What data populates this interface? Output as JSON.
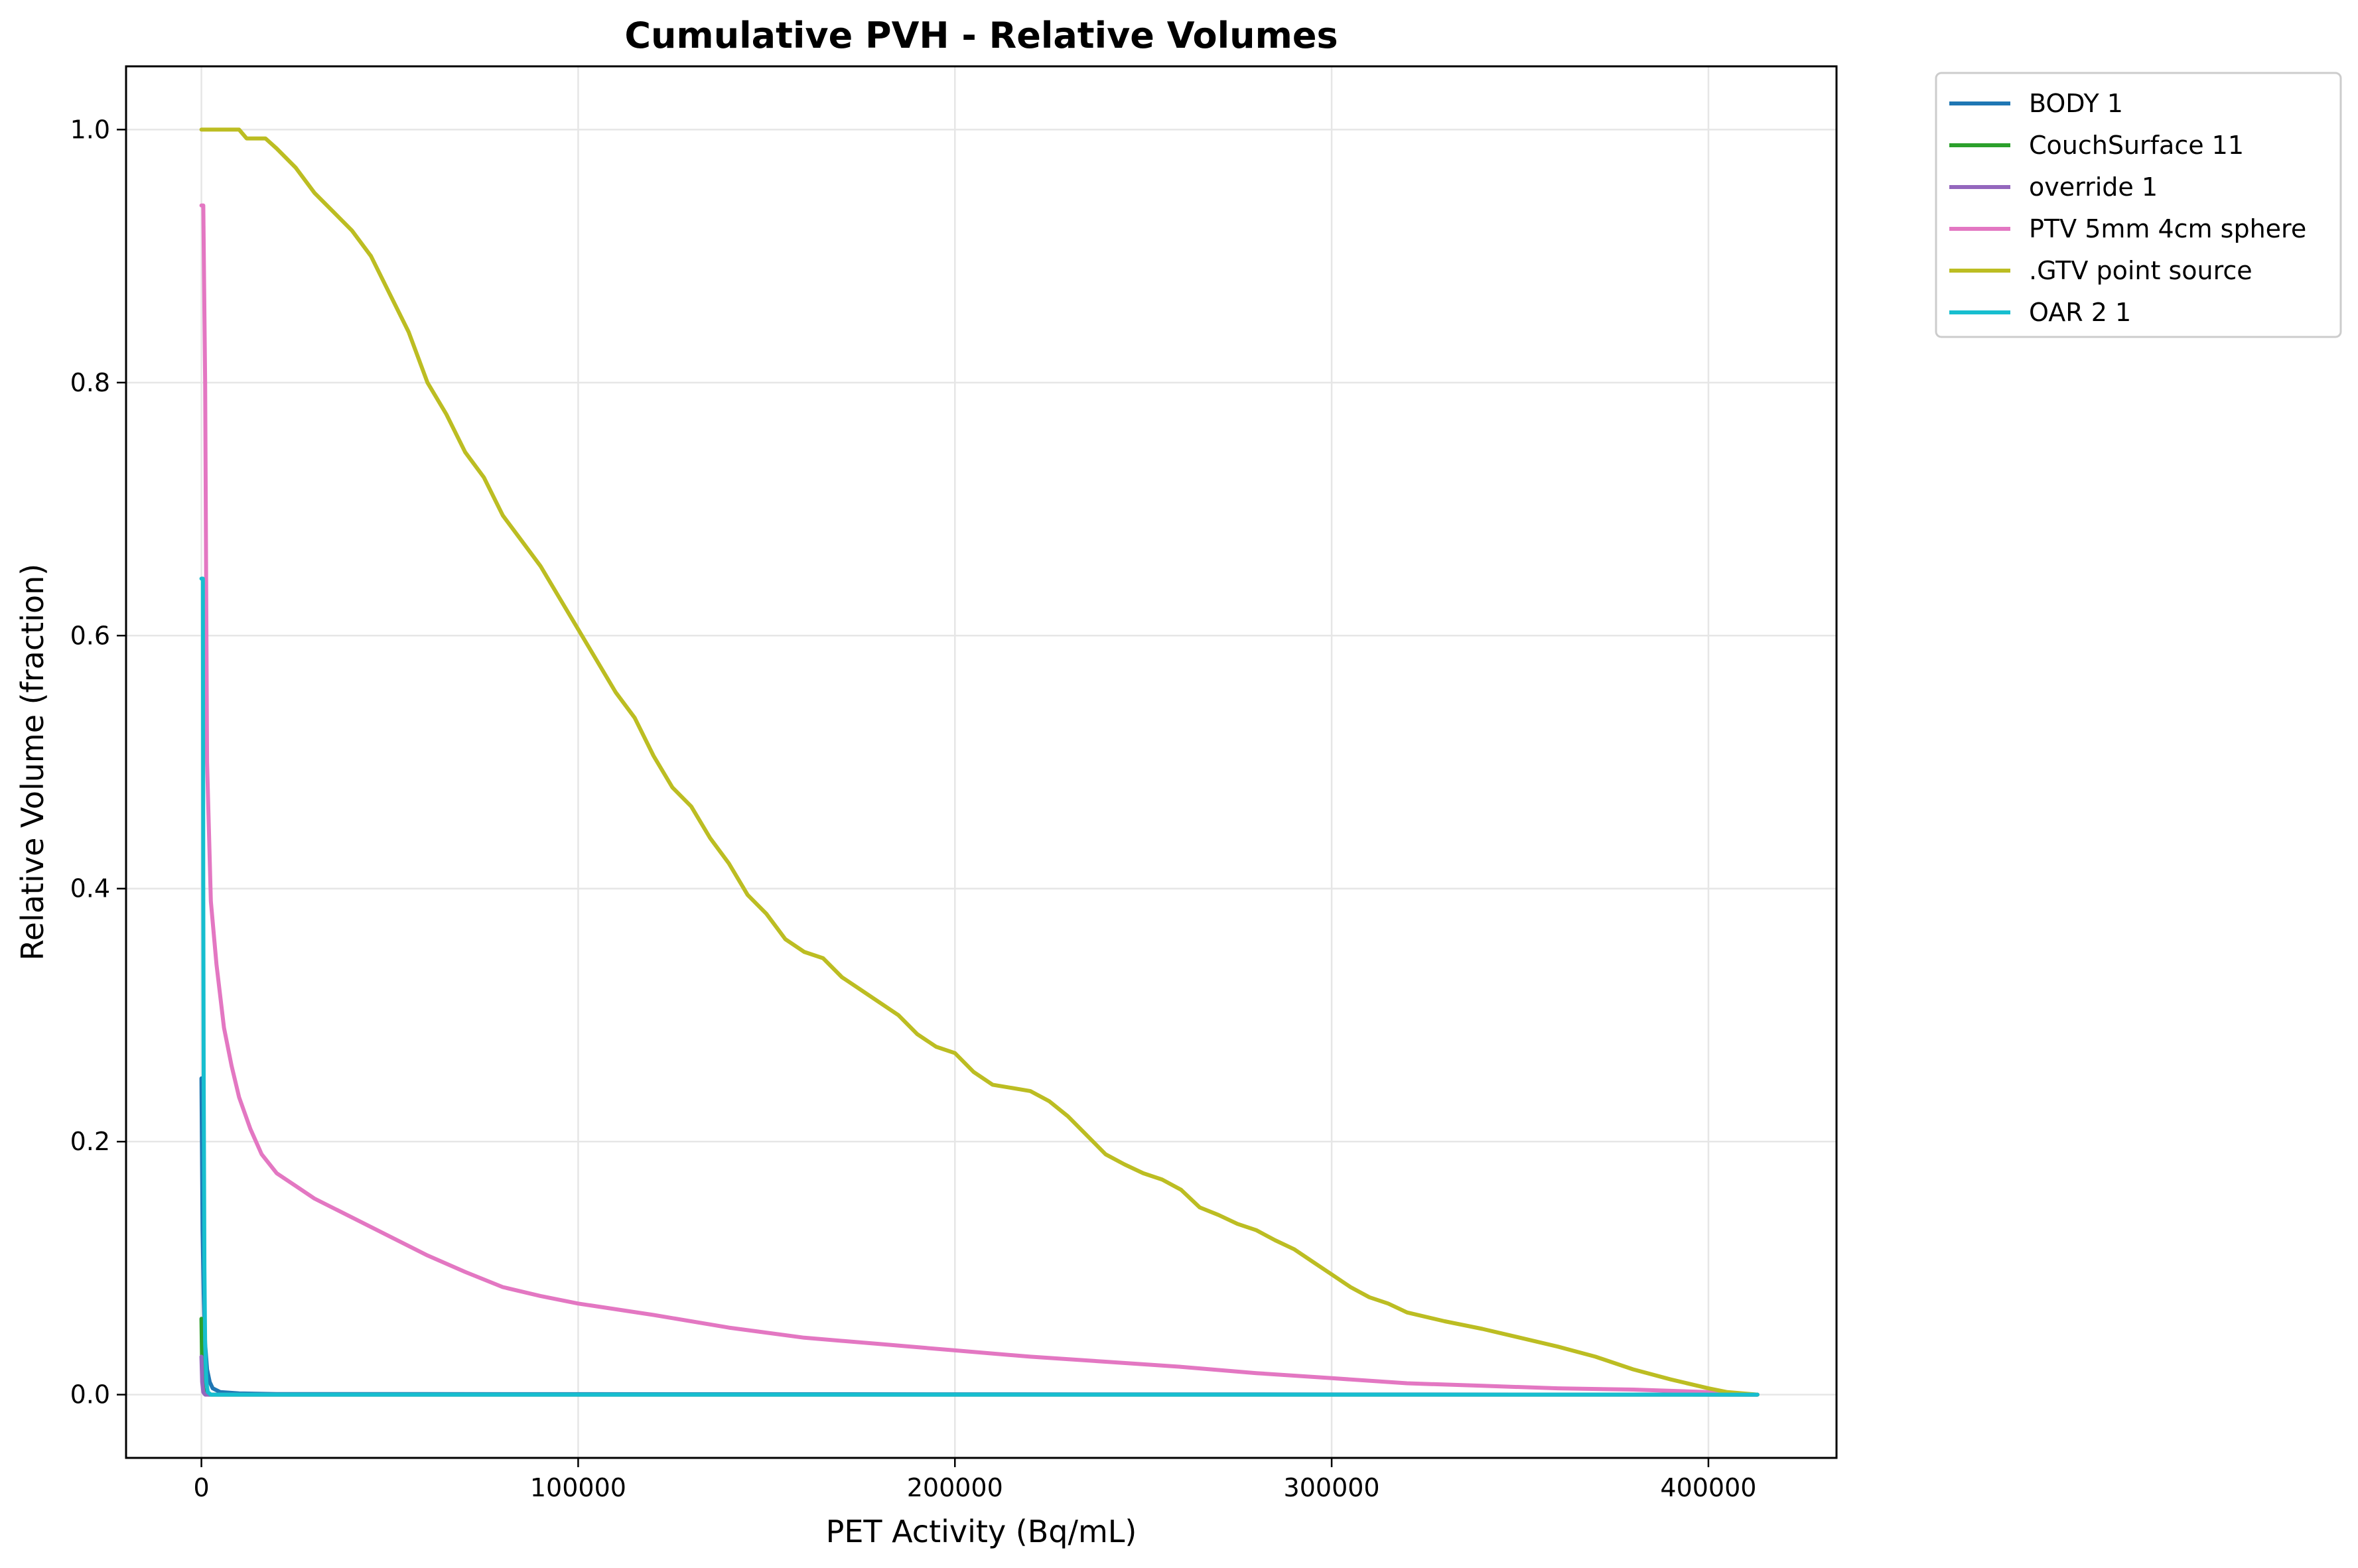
{
  "chart_data": {
    "type": "line",
    "title": "Cumulative PVH - Relative Volumes",
    "xlabel": "PET Activity (Bq/mL)",
    "ylabel": "Relative Volume (fraction)",
    "xlim": [
      -20000,
      434000
    ],
    "ylim": [
      -0.05,
      1.05
    ],
    "x_ticks": [
      0,
      100000,
      200000,
      300000,
      400000
    ],
    "x_tick_labels": [
      "0",
      "100000",
      "200000",
      "300000",
      "400000"
    ],
    "y_ticks": [
      0.0,
      0.2,
      0.4,
      0.6,
      0.8,
      1.0
    ],
    "y_tick_labels": [
      "0.0",
      "0.2",
      "0.4",
      "0.6",
      "0.8",
      "1.0"
    ],
    "grid": true,
    "legend_position": "outside-top-right",
    "series": [
      {
        "name": "BODY 1",
        "color": "#1f77b4",
        "points": [
          [
            0,
            0.25
          ],
          [
            300,
            0.13
          ],
          [
            600,
            0.08
          ],
          [
            1000,
            0.04
          ],
          [
            1500,
            0.02
          ],
          [
            2200,
            0.01
          ],
          [
            3000,
            0.005
          ],
          [
            5000,
            0.002
          ],
          [
            10000,
            0.001
          ],
          [
            20000,
            0.0005
          ],
          [
            413000,
            0.0
          ]
        ]
      },
      {
        "name": "CouchSurface 11",
        "color": "#2ca02c",
        "points": [
          [
            0,
            0.06
          ],
          [
            200,
            0.02
          ],
          [
            500,
            0.005
          ],
          [
            1000,
            0.001
          ],
          [
            2000,
            0.0
          ],
          [
            413000,
            0.0
          ]
        ]
      },
      {
        "name": "override 1",
        "color": "#9467bd",
        "points": [
          [
            0,
            0.03
          ],
          [
            200,
            0.01
          ],
          [
            500,
            0.002
          ],
          [
            1000,
            0.0
          ],
          [
            413000,
            0.0
          ]
        ]
      },
      {
        "name": "PTV 5mm 4cm sphere",
        "color": "#e377c2",
        "points": [
          [
            0,
            0.94
          ],
          [
            500,
            0.94
          ],
          [
            1000,
            0.8
          ],
          [
            1500,
            0.5
          ],
          [
            2500,
            0.39
          ],
          [
            4000,
            0.34
          ],
          [
            6000,
            0.29
          ],
          [
            8000,
            0.26
          ],
          [
            10000,
            0.235
          ],
          [
            13000,
            0.21
          ],
          [
            16000,
            0.19
          ],
          [
            20000,
            0.175
          ],
          [
            25000,
            0.165
          ],
          [
            30000,
            0.155
          ],
          [
            40000,
            0.14
          ],
          [
            50000,
            0.125
          ],
          [
            60000,
            0.11
          ],
          [
            70000,
            0.097
          ],
          [
            80000,
            0.085
          ],
          [
            90000,
            0.078
          ],
          [
            100000,
            0.072
          ],
          [
            120000,
            0.063
          ],
          [
            140000,
            0.053
          ],
          [
            160000,
            0.045
          ],
          [
            180000,
            0.04
          ],
          [
            200000,
            0.035
          ],
          [
            220000,
            0.03
          ],
          [
            240000,
            0.026
          ],
          [
            260000,
            0.022
          ],
          [
            280000,
            0.017
          ],
          [
            300000,
            0.013
          ],
          [
            320000,
            0.009
          ],
          [
            340000,
            0.007
          ],
          [
            360000,
            0.005
          ],
          [
            380000,
            0.004
          ],
          [
            400000,
            0.002
          ],
          [
            413000,
            0.0
          ]
        ]
      },
      {
        "name": ".GTV point source",
        "color": "#bcbd22",
        "points": [
          [
            0,
            1.0
          ],
          [
            10000,
            1.0
          ],
          [
            12000,
            0.993
          ],
          [
            17000,
            0.993
          ],
          [
            20000,
            0.985
          ],
          [
            25000,
            0.97
          ],
          [
            30000,
            0.95
          ],
          [
            35000,
            0.935
          ],
          [
            40000,
            0.92
          ],
          [
            45000,
            0.9
          ],
          [
            50000,
            0.87
          ],
          [
            55000,
            0.84
          ],
          [
            60000,
            0.8
          ],
          [
            65000,
            0.775
          ],
          [
            70000,
            0.745
          ],
          [
            75000,
            0.725
          ],
          [
            80000,
            0.695
          ],
          [
            85000,
            0.675
          ],
          [
            90000,
            0.655
          ],
          [
            95000,
            0.63
          ],
          [
            100000,
            0.605
          ],
          [
            105000,
            0.58
          ],
          [
            110000,
            0.555
          ],
          [
            115000,
            0.535
          ],
          [
            120000,
            0.505
          ],
          [
            125000,
            0.48
          ],
          [
            130000,
            0.465
          ],
          [
            135000,
            0.44
          ],
          [
            140000,
            0.42
          ],
          [
            145000,
            0.395
          ],
          [
            150000,
            0.38
          ],
          [
            155000,
            0.36
          ],
          [
            160000,
            0.35
          ],
          [
            165000,
            0.345
          ],
          [
            170000,
            0.33
          ],
          [
            175000,
            0.32
          ],
          [
            180000,
            0.31
          ],
          [
            185000,
            0.3
          ],
          [
            190000,
            0.285
          ],
          [
            195000,
            0.275
          ],
          [
            200000,
            0.27
          ],
          [
            205000,
            0.255
          ],
          [
            210000,
            0.245
          ],
          [
            220000,
            0.24
          ],
          [
            225000,
            0.232
          ],
          [
            230000,
            0.22
          ],
          [
            235000,
            0.205
          ],
          [
            240000,
            0.19
          ],
          [
            245000,
            0.182
          ],
          [
            250000,
            0.175
          ],
          [
            255000,
            0.17
          ],
          [
            260000,
            0.162
          ],
          [
            265000,
            0.148
          ],
          [
            270000,
            0.142
          ],
          [
            275000,
            0.135
          ],
          [
            280000,
            0.13
          ],
          [
            285000,
            0.122
          ],
          [
            290000,
            0.115
          ],
          [
            295000,
            0.105
          ],
          [
            300000,
            0.095
          ],
          [
            305000,
            0.085
          ],
          [
            310000,
            0.077
          ],
          [
            315000,
            0.072
          ],
          [
            320000,
            0.065
          ],
          [
            330000,
            0.058
          ],
          [
            340000,
            0.052
          ],
          [
            350000,
            0.045
          ],
          [
            360000,
            0.038
          ],
          [
            370000,
            0.03
          ],
          [
            380000,
            0.02
          ],
          [
            390000,
            0.012
          ],
          [
            400000,
            0.005
          ],
          [
            405000,
            0.002
          ],
          [
            413000,
            0.0
          ]
        ]
      },
      {
        "name": "OAR 2 1",
        "color": "#17becf",
        "points": [
          [
            0,
            0.645
          ],
          [
            400,
            0.645
          ],
          [
            500,
            0.39
          ],
          [
            600,
            0.25
          ],
          [
            800,
            0.1
          ],
          [
            1000,
            0.04
          ],
          [
            1300,
            0.01
          ],
          [
            1700,
            0.002
          ],
          [
            2500,
            0.0
          ],
          [
            413000,
            0.0
          ]
        ]
      }
    ]
  }
}
